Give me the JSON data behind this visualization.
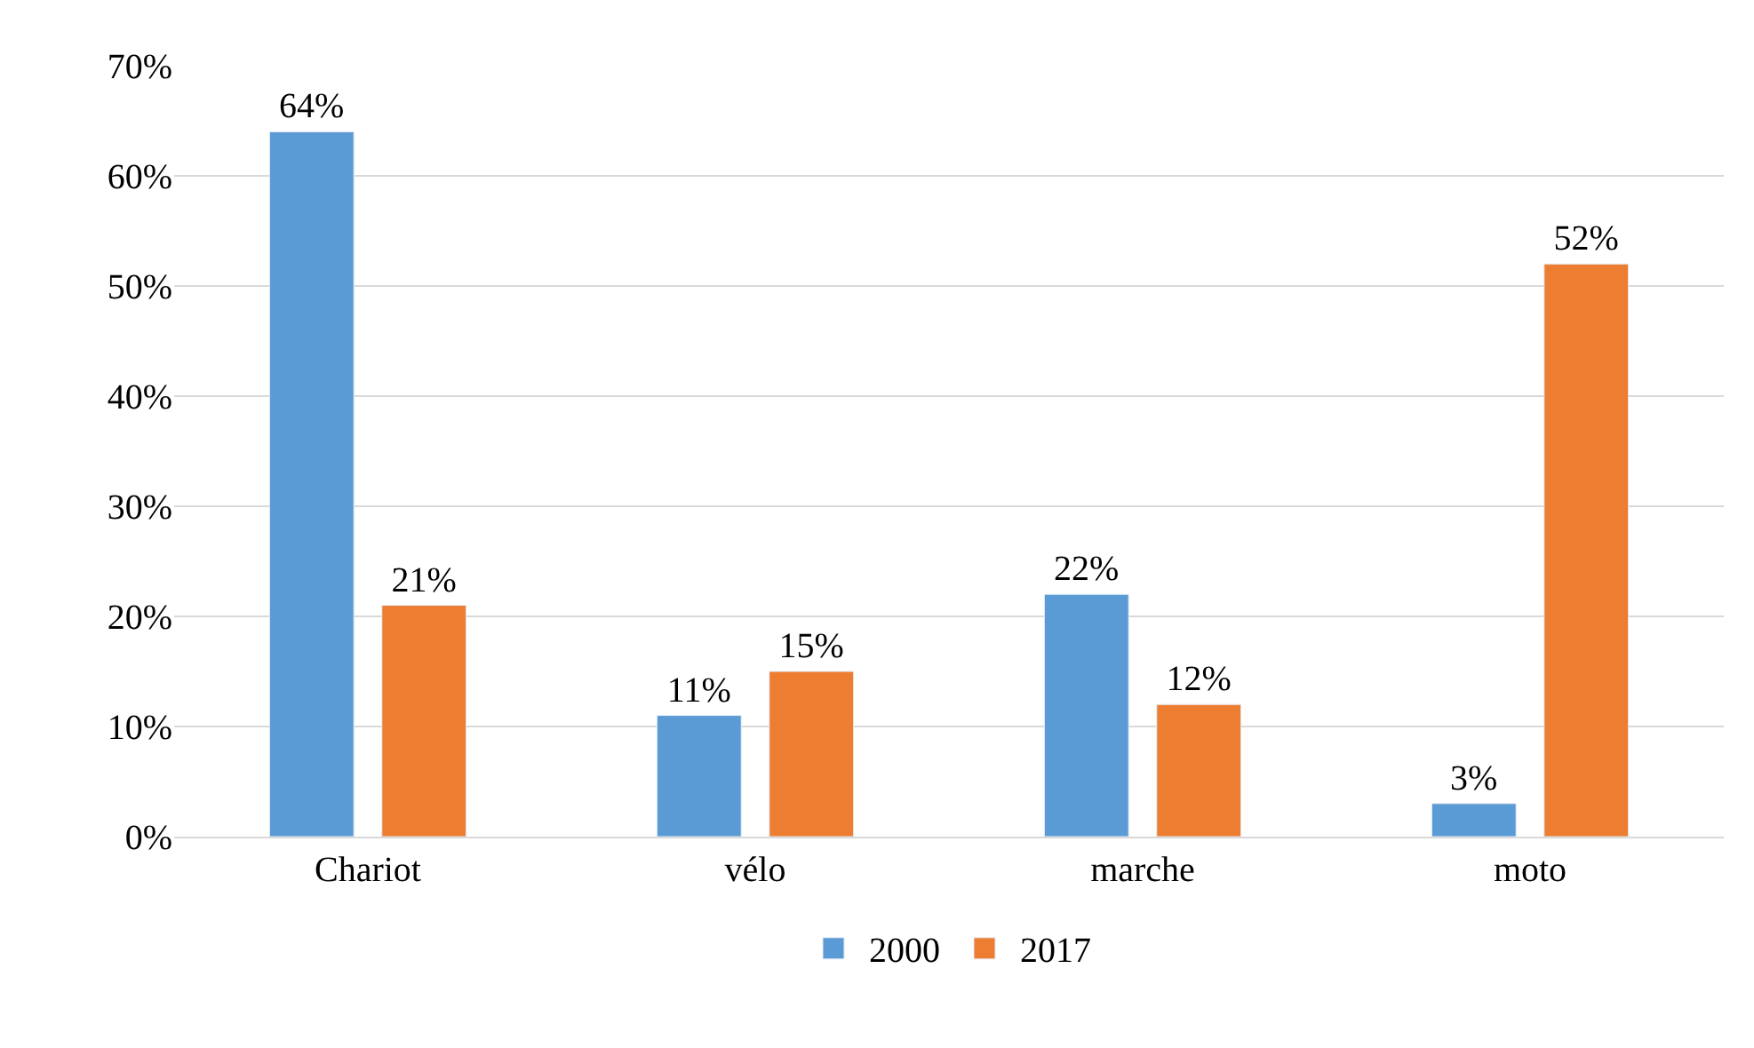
{
  "chart_data": {
    "type": "bar",
    "categories": [
      "Chariot",
      "vélo",
      "marche",
      "moto"
    ],
    "series": [
      {
        "name": "2000",
        "color": "#5b9bd5",
        "values": [
          64,
          11,
          22,
          3
        ],
        "value_labels": [
          "64%",
          "11%",
          "22%",
          "3%"
        ]
      },
      {
        "name": "2017",
        "color": "#ed7d31",
        "values": [
          21,
          15,
          12,
          52
        ],
        "value_labels": [
          "21%",
          "15%",
          "12%",
          "52%"
        ]
      }
    ],
    "ylim": [
      0,
      70
    ],
    "yticks": [
      {
        "value": 0,
        "label": "0%"
      },
      {
        "value": 10,
        "label": "10%"
      },
      {
        "value": 20,
        "label": "20%"
      },
      {
        "value": 30,
        "label": "30%"
      },
      {
        "value": 40,
        "label": "40%"
      },
      {
        "value": 50,
        "label": "50%"
      },
      {
        "value": 60,
        "label": "60%"
      },
      {
        "value": 70,
        "label": "70%"
      }
    ],
    "grid": "y",
    "legend": "bottom"
  }
}
